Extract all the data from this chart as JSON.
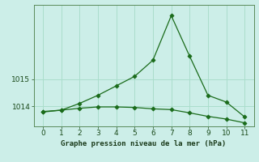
{
  "line1_x": [
    0,
    1,
    2,
    3,
    4,
    5,
    6,
    7,
    8,
    9,
    10,
    11
  ],
  "line1_y": [
    1013.8,
    1013.85,
    1014.1,
    1014.4,
    1014.75,
    1015.1,
    1015.7,
    1017.35,
    1015.85,
    1014.4,
    1014.15,
    1013.6
  ],
  "line2_x": [
    0,
    1,
    2,
    3,
    4,
    5,
    6,
    7,
    8,
    9,
    10,
    11
  ],
  "line2_y": [
    1013.78,
    1013.85,
    1013.92,
    1013.97,
    1013.97,
    1013.95,
    1013.9,
    1013.87,
    1013.75,
    1013.62,
    1013.52,
    1013.38
  ],
  "line_color": "#1a6b1a",
  "bg_color": "#cceee8",
  "grid_color": "#aaddcc",
  "xlabel": "Graphe pression niveau de la mer (hPa)",
  "yticks": [
    1014,
    1015
  ],
  "xticks": [
    0,
    1,
    2,
    3,
    4,
    5,
    6,
    7,
    8,
    9,
    10,
    11
  ],
  "xlim": [
    -0.5,
    11.5
  ],
  "ylim": [
    1013.25,
    1017.75
  ],
  "fig_bg": "#cceee8"
}
